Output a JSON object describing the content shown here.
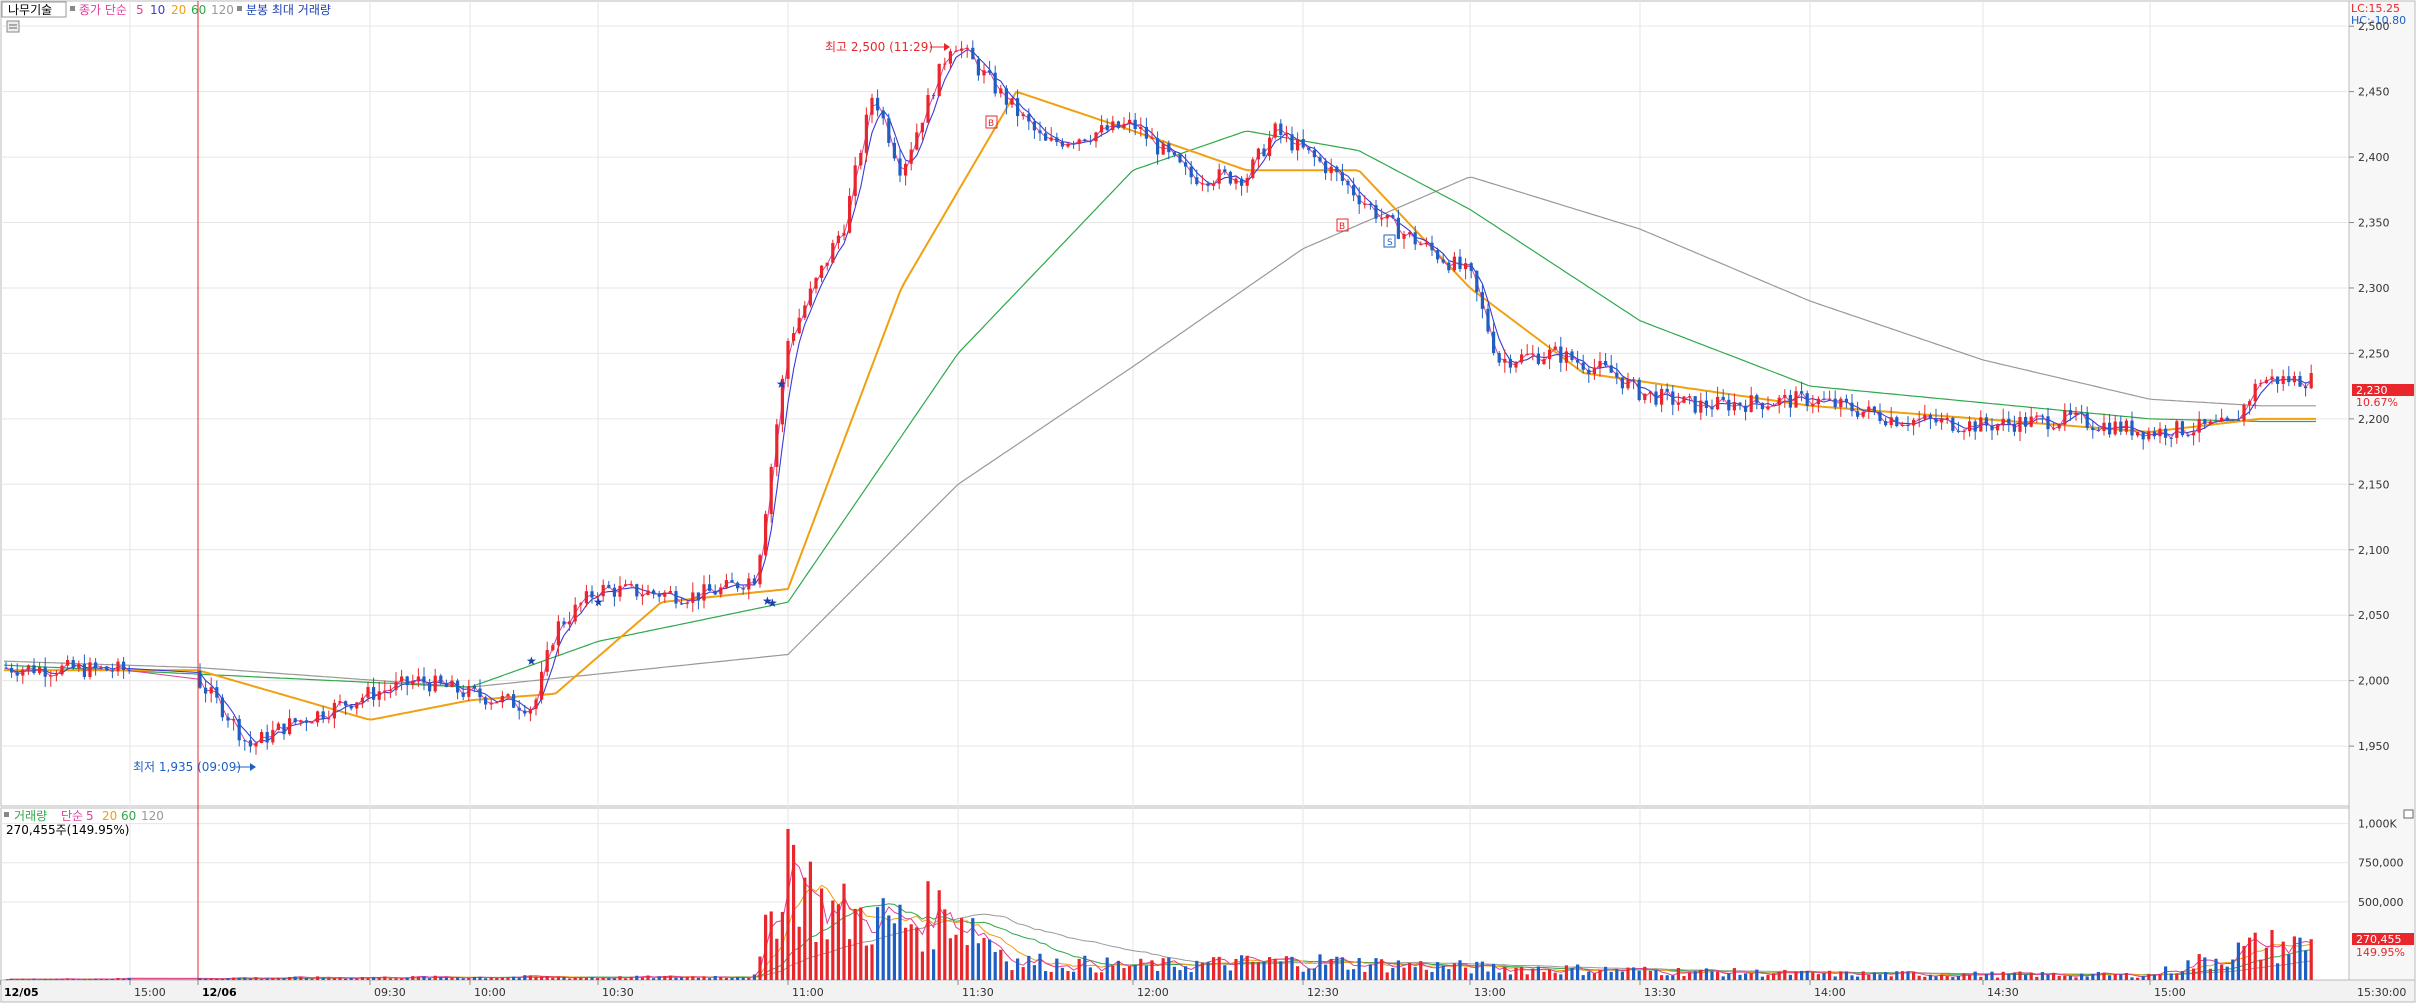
{
  "price_legend": {
    "symbol": "나무기술",
    "ma_title": "종가 단순",
    "periods": [
      "5",
      "10",
      "20",
      "60",
      "120"
    ],
    "extra": "분봉 최대 거래량"
  },
  "volume_legend": {
    "title": "거래량",
    "ma_title": "단순",
    "periods": [
      "5",
      "20",
      "60",
      "120"
    ],
    "current": "270,455주(149.95%)"
  },
  "corner_info": {
    "lc": "LC:15.25",
    "hc": "HC:-10.80"
  },
  "annotations": {
    "high": "최고 2,500 (11:29)",
    "low": "최저 1,935 (09:09)"
  },
  "price_tag": {
    "price": "2,230",
    "pct": "10.67%"
  },
  "volume_tag": {
    "value": "270,455",
    "pct": "149.95%"
  },
  "colors": {
    "up": "#e8262b",
    "down": "#1f5fc4",
    "ma5": "#e0409a",
    "ma10": "#3a3ad6",
    "ma20": "#f0a010",
    "ma60": "#2fa84a",
    "ma120": "#999999",
    "grid": "#e6e6e6",
    "axis_bg": "#f2f2f2"
  },
  "chart_data": [
    {
      "type": "candlestick",
      "y_ticks": [
        "2,500",
        "2,450",
        "2,400",
        "2,350",
        "2,300",
        "2,250",
        "2,200",
        "2,150",
        "2,100",
        "2,050",
        "2,000",
        "1,950"
      ],
      "ylim": [
        1905,
        2520
      ],
      "x_labels": [
        "12/05",
        "15:00",
        "12/06",
        "09:30",
        "10:00",
        "10:30",
        "11:00",
        "11:30",
        "12:00",
        "12:30",
        "13:00",
        "13:30",
        "14:00",
        "14:30",
        "15:00"
      ],
      "time_axis": [
        "12/05 14:30",
        "12/05 15:00",
        "12/06 09:00",
        "12/06 09:30",
        "12/06 10:00",
        "12/06 10:30",
        "12/06 11:00",
        "12/06 11:30",
        "12/06 12:00",
        "12/06 12:30",
        "12/06 13:00",
        "12/06 13:30",
        "12/06 14:00",
        "12/06 14:30",
        "12/06 15:00",
        "12/06 15:30"
      ],
      "close_path": [
        [
          "12/05 14:30",
          2010
        ],
        [
          "12/05 15:00",
          2008
        ],
        [
          "12/05 15:20",
          2010
        ],
        [
          "12/06 09:00",
          2000
        ],
        [
          "12/06 09:05",
          1975
        ],
        [
          "12/06 09:09",
          1950
        ],
        [
          "12/06 09:15",
          1965
        ],
        [
          "12/06 09:30",
          1990
        ],
        [
          "12/06 09:45",
          2000
        ],
        [
          "12/06 10:00",
          1990
        ],
        [
          "12/06 10:15",
          1980
        ],
        [
          "12/06 10:20",
          2040
        ],
        [
          "12/06 10:30",
          2070
        ],
        [
          "12/06 10:45",
          2065
        ],
        [
          "12/06 10:50",
          2070
        ],
        [
          "12/06 10:55",
          2080
        ],
        [
          "12/06 11:00",
          2260
        ],
        [
          "12/06 11:10",
          2350
        ],
        [
          "12/06 11:15",
          2450
        ],
        [
          "12/06 11:20",
          2390
        ],
        [
          "12/06 11:29",
          2490
        ],
        [
          "12/06 11:35",
          2460
        ],
        [
          "12/06 11:45",
          2410
        ],
        [
          "12/06 12:00",
          2425
        ],
        [
          "12/06 12:10",
          2385
        ],
        [
          "12/06 12:20",
          2385
        ],
        [
          "12/06 12:25",
          2420
        ],
        [
          "12/06 12:35",
          2390
        ],
        [
          "12/06 12:45",
          2350
        ],
        [
          "12/06 13:00",
          2310
        ],
        [
          "12/06 13:05",
          2245
        ],
        [
          "12/06 13:15",
          2250
        ],
        [
          "12/06 13:25",
          2235
        ],
        [
          "12/06 13:30",
          2220
        ],
        [
          "12/06 13:40",
          2210
        ],
        [
          "12/06 14:00",
          2215
        ],
        [
          "12/06 14:15",
          2200
        ],
        [
          "12/06 14:30",
          2195
        ],
        [
          "12/06 14:45",
          2200
        ],
        [
          "12/06 15:00",
          2190
        ],
        [
          "12/06 15:15",
          2195
        ],
        [
          "12/06 15:20",
          2230
        ]
      ],
      "ma20_path": [
        [
          "12/05 14:30",
          2008
        ],
        [
          "12/06 09:00",
          2008
        ],
        [
          "12/06 09:30",
          1970
        ],
        [
          "12/06 10:00",
          1985
        ],
        [
          "12/06 10:20",
          1990
        ],
        [
          "12/06 10:40",
          2060
        ],
        [
          "12/06 11:00",
          2070
        ],
        [
          "12/06 11:20",
          2300
        ],
        [
          "12/06 11:40",
          2450
        ],
        [
          "12/06 12:00",
          2420
        ],
        [
          "12/06 12:20",
          2390
        ],
        [
          "12/06 12:40",
          2390
        ],
        [
          "12/06 13:00",
          2300
        ],
        [
          "12/06 13:20",
          2235
        ],
        [
          "12/06 14:00",
          2210
        ],
        [
          "12/06 15:00",
          2190
        ],
        [
          "12/06 15:20",
          2200
        ]
      ],
      "ma60_path": [
        [
          "12/05 14:30",
          2012
        ],
        [
          "12/06 09:00",
          2005
        ],
        [
          "12/06 10:00",
          1995
        ],
        [
          "12/06 10:30",
          2030
        ],
        [
          "12/06 11:00",
          2060
        ],
        [
          "12/06 11:30",
          2250
        ],
        [
          "12/06 12:00",
          2390
        ],
        [
          "12/06 12:20",
          2420
        ],
        [
          "12/06 12:40",
          2405
        ],
        [
          "12/06 13:00",
          2360
        ],
        [
          "12/06 13:30",
          2275
        ],
        [
          "12/06 14:00",
          2225
        ],
        [
          "12/06 15:00",
          2200
        ],
        [
          "12/06 15:20",
          2198
        ]
      ],
      "ma120_path": [
        [
          "12/05 14:30",
          2015
        ],
        [
          "12/06 09:00",
          2010
        ],
        [
          "12/06 10:00",
          1995
        ],
        [
          "12/06 11:00",
          2020
        ],
        [
          "12/06 11:30",
          2150
        ],
        [
          "12/06 12:00",
          2240
        ],
        [
          "12/06 12:30",
          2330
        ],
        [
          "12/06 13:00",
          2385
        ],
        [
          "12/06 13:30",
          2345
        ],
        [
          "12/06 14:00",
          2290
        ],
        [
          "12/06 14:30",
          2245
        ],
        [
          "12/06 15:00",
          2215
        ],
        [
          "12/06 15:20",
          2210
        ]
      ]
    },
    {
      "type": "bar",
      "y_ticks": [
        "1,000K",
        "750,000",
        "500,000"
      ],
      "ylim": [
        0,
        1100000
      ],
      "volume_profile": [
        [
          "12/05 14:30",
          5000
        ],
        [
          "12/06 09:00",
          15000
        ],
        [
          "12/06 10:15",
          25000
        ],
        [
          "12/06 10:30",
          20000
        ],
        [
          "12/06 10:55",
          30000
        ],
        [
          "12/06 11:00",
          1080000
        ],
        [
          "12/06 11:05",
          600000
        ],
        [
          "12/06 11:10",
          520000
        ],
        [
          "12/06 11:20",
          450000
        ],
        [
          "12/06 11:29",
          560000
        ],
        [
          "12/06 11:40",
          150000
        ],
        [
          "12/06 12:00",
          110000
        ],
        [
          "12/06 12:30",
          150000
        ],
        [
          "12/06 13:00",
          100000
        ],
        [
          "12/06 14:00",
          50000
        ],
        [
          "12/06 15:00",
          40000
        ],
        [
          "12/06 15:20",
          270455
        ]
      ]
    }
  ]
}
